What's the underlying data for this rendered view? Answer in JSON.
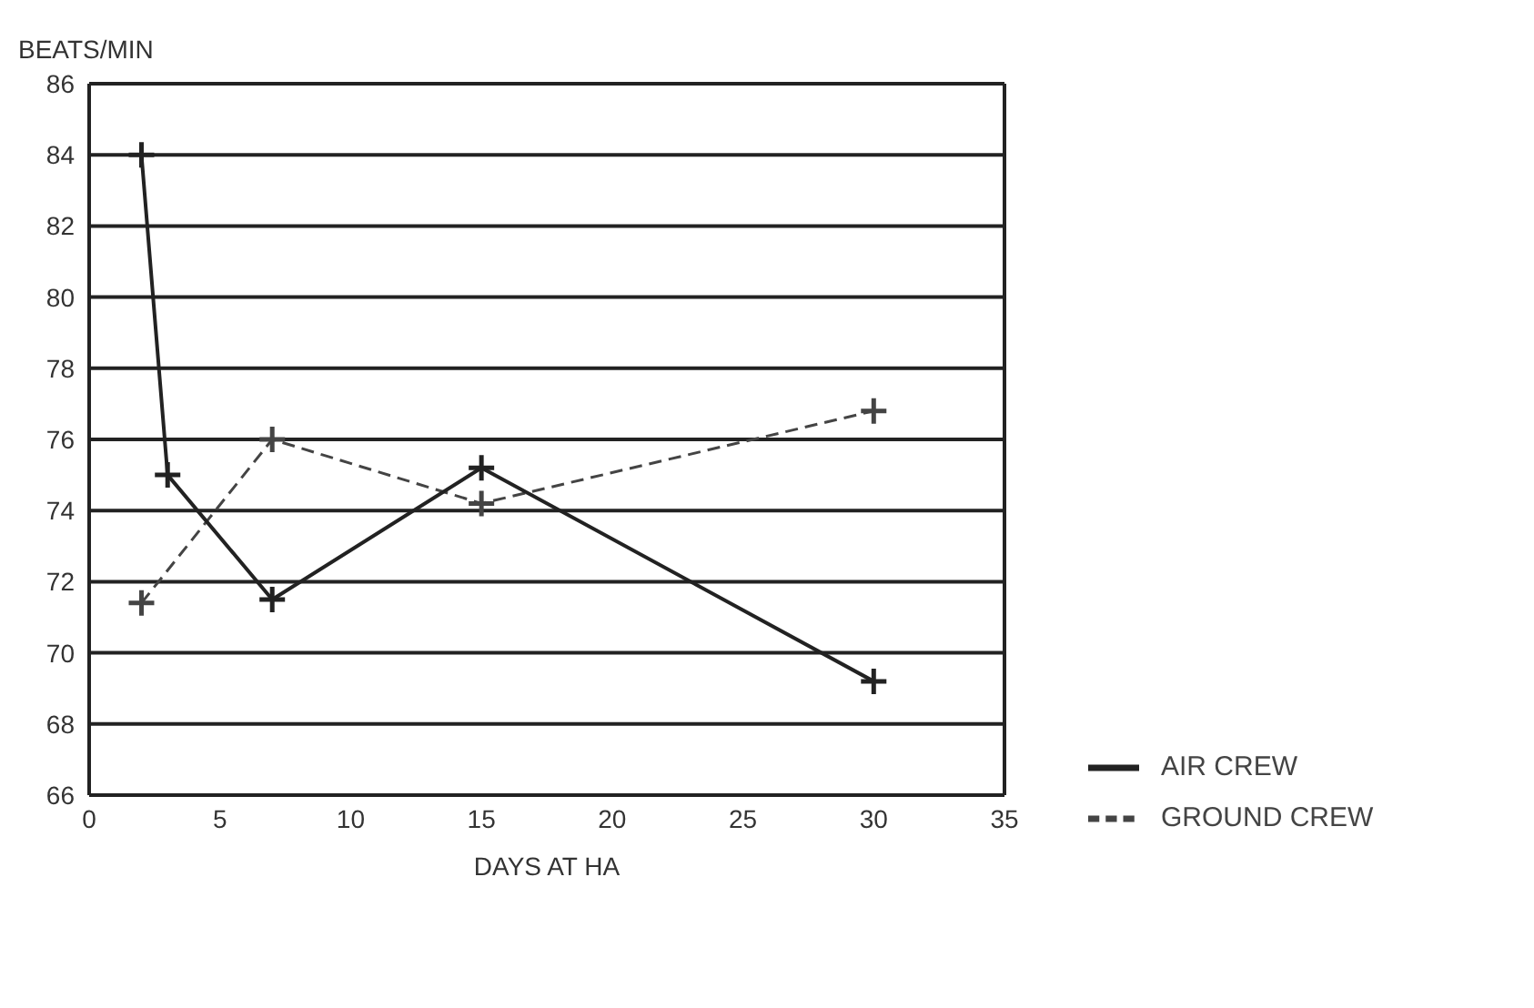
{
  "chart_data": {
    "type": "line",
    "xlabel": "DAYS AT HA",
    "ylabel": "BEATS/MIN",
    "xlim": [
      0,
      35
    ],
    "xticks": [
      0,
      5,
      10,
      15,
      20,
      25,
      30,
      35
    ],
    "ylim": [
      66,
      86
    ],
    "yticks": [
      66,
      68,
      70,
      72,
      74,
      76,
      78,
      80,
      82,
      84,
      86
    ],
    "grid": "y",
    "legend": "right",
    "marker": "cross",
    "series": [
      {
        "name": "GROUND CREW",
        "color": "#444444",
        "line_style": "dashed",
        "x": [
          2,
          7,
          15,
          30
        ],
        "values": [
          71.4,
          76,
          74.2,
          76.8
        ]
      },
      {
        "name": "AIR CREW",
        "color": "#222222",
        "line_style": "solid",
        "x": [
          2,
          3,
          7,
          15,
          30
        ],
        "values": [
          84,
          75,
          71.5,
          75.2,
          69.2
        ]
      }
    ]
  }
}
